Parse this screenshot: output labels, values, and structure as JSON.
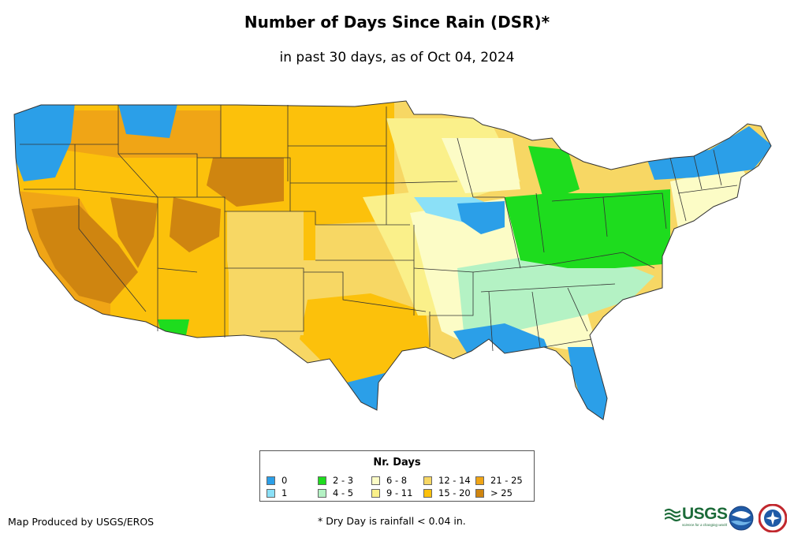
{
  "title": "Number of Days Since Rain (DSR)*",
  "subtitle": "in past 30 days, as of Oct 04, 2024",
  "legend": {
    "title": "Nr. Days",
    "items": [
      {
        "label": "0",
        "color": "#2b9fe8"
      },
      {
        "label": "1",
        "color": "#8be0f7"
      },
      {
        "label": "2 - 3",
        "color": "#1edc1e"
      },
      {
        "label": "4 - 5",
        "color": "#b4f2c4"
      },
      {
        "label": "6 - 8",
        "color": "#fcfcc6"
      },
      {
        "label": "9 - 11",
        "color": "#faf08a"
      },
      {
        "label": "12 - 14",
        "color": "#f7d764"
      },
      {
        "label": "15 - 20",
        "color": "#fcc10b"
      },
      {
        "label": "21 - 25",
        "color": "#f0a516"
      },
      {
        "label": "> 25",
        "color": "#cf8510"
      }
    ]
  },
  "credit": "Map Produced by USGS/EROS",
  "footnote": "* Dry Day is rainfall < 0.04 in.",
  "logos": {
    "usgs": "USGS",
    "usgs_tagline": "science for a changing world",
    "noaa": "NOAA",
    "nws": "NATIONAL WEATHER SERVICE"
  }
}
